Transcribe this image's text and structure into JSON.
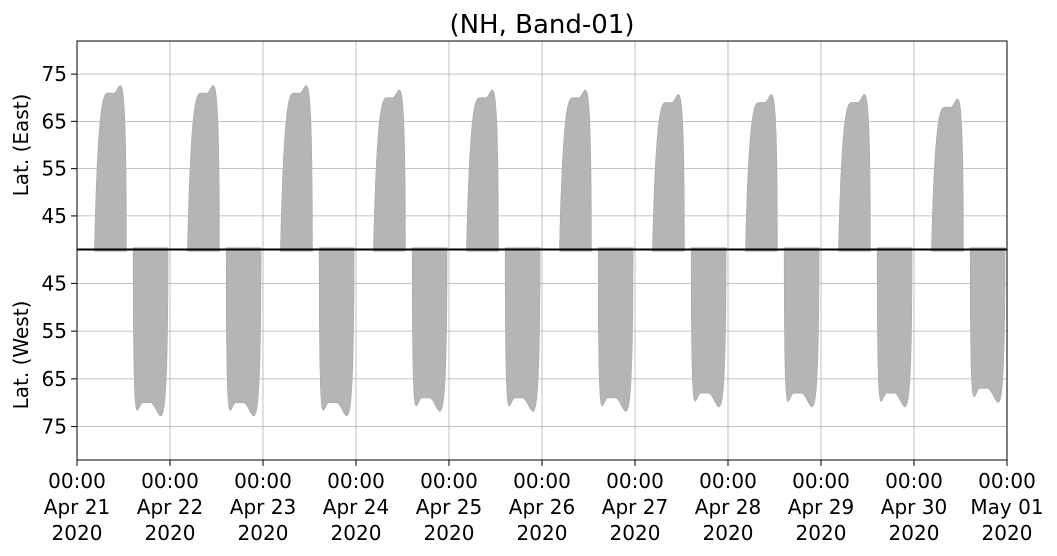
{
  "chart_data": {
    "type": "area",
    "title": "(NH, Band-01)",
    "grid": true,
    "fill_color": "#b5b5b5",
    "grid_color": "#b0b0b0",
    "x_ticks": [
      {
        "time": "00:00",
        "date": "Apr 21",
        "year": "2020"
      },
      {
        "time": "00:00",
        "date": "Apr 22",
        "year": "2020"
      },
      {
        "time": "00:00",
        "date": "Apr 23",
        "year": "2020"
      },
      {
        "time": "00:00",
        "date": "Apr 24",
        "year": "2020"
      },
      {
        "time": "00:00",
        "date": "Apr 25",
        "year": "2020"
      },
      {
        "time": "00:00",
        "date": "Apr 26",
        "year": "2020"
      },
      {
        "time": "00:00",
        "date": "Apr 27",
        "year": "2020"
      },
      {
        "time": "00:00",
        "date": "Apr 28",
        "year": "2020"
      },
      {
        "time": "00:00",
        "date": "Apr 29",
        "year": "2020"
      },
      {
        "time": "00:00",
        "date": "Apr 30",
        "year": "2020"
      },
      {
        "time": "00:00",
        "date": "May 01",
        "year": "2020"
      }
    ],
    "xlim": [
      "2020-04-21 00:00",
      "2020-05-01 00:00"
    ],
    "panels": [
      {
        "ylabel": "Lat. (East)",
        "ylim": [
          82,
          38
        ],
        "yticks": [
          45,
          55,
          65,
          75
        ],
        "swaths": [
          {
            "start": "Apr 21 04:30",
            "peak": "Apr 21 08:00",
            "end": "Apr 21 12:45",
            "peak_lat": 71
          },
          {
            "start": "Apr 22 04:30",
            "peak": "Apr 22 08:00",
            "end": "Apr 22 12:45",
            "peak_lat": 71
          },
          {
            "start": "Apr 23 04:30",
            "peak": "Apr 23 08:00",
            "end": "Apr 23 12:45",
            "peak_lat": 71
          },
          {
            "start": "Apr 24 04:30",
            "peak": "Apr 24 08:00",
            "end": "Apr 24 12:45",
            "peak_lat": 70
          },
          {
            "start": "Apr 25 04:30",
            "peak": "Apr 25 08:00",
            "end": "Apr 25 12:45",
            "peak_lat": 70
          },
          {
            "start": "Apr 26 04:30",
            "peak": "Apr 26 08:00",
            "end": "Apr 26 12:45",
            "peak_lat": 70
          },
          {
            "start": "Apr 27 04:30",
            "peak": "Apr 27 08:00",
            "end": "Apr 27 12:45",
            "peak_lat": 69
          },
          {
            "start": "Apr 28 04:30",
            "peak": "Apr 28 08:00",
            "end": "Apr 28 12:45",
            "peak_lat": 69
          },
          {
            "start": "Apr 29 04:30",
            "peak": "Apr 29 08:00",
            "end": "Apr 29 12:45",
            "peak_lat": 69
          },
          {
            "start": "Apr 30 04:30",
            "peak": "Apr 30 08:00",
            "end": "Apr 30 12:45",
            "peak_lat": 68
          }
        ]
      },
      {
        "ylabel": "Lat. (West)",
        "ylim": [
          38,
          82
        ],
        "yticks": [
          45,
          55,
          65,
          75
        ],
        "swaths": [
          {
            "start": "Apr 21 14:30",
            "peak": "Apr 21 18:00",
            "end": "Apr 21 23:30",
            "peak_lat": 70
          },
          {
            "start": "Apr 22 14:30",
            "peak": "Apr 22 18:00",
            "end": "Apr 22 23:30",
            "peak_lat": 70
          },
          {
            "start": "Apr 23 14:30",
            "peak": "Apr 23 18:00",
            "end": "Apr 23 23:30",
            "peak_lat": 70
          },
          {
            "start": "Apr 24 14:30",
            "peak": "Apr 24 18:00",
            "end": "Apr 24 23:30",
            "peak_lat": 69
          },
          {
            "start": "Apr 25 14:30",
            "peak": "Apr 25 18:00",
            "end": "Apr 25 23:30",
            "peak_lat": 69
          },
          {
            "start": "Apr 26 14:30",
            "peak": "Apr 26 18:00",
            "end": "Apr 26 23:30",
            "peak_lat": 69
          },
          {
            "start": "Apr 27 14:30",
            "peak": "Apr 27 18:00",
            "end": "Apr 27 23:30",
            "peak_lat": 68
          },
          {
            "start": "Apr 28 14:30",
            "peak": "Apr 28 18:00",
            "end": "Apr 28 23:30",
            "peak_lat": 68
          },
          {
            "start": "Apr 29 14:30",
            "peak": "Apr 29 18:00",
            "end": "Apr 29 23:30",
            "peak_lat": 68
          },
          {
            "start": "Apr 30 14:30",
            "peak": "Apr 30 18:00",
            "end": "Apr 30 23:30",
            "peak_lat": 67
          }
        ]
      }
    ]
  }
}
